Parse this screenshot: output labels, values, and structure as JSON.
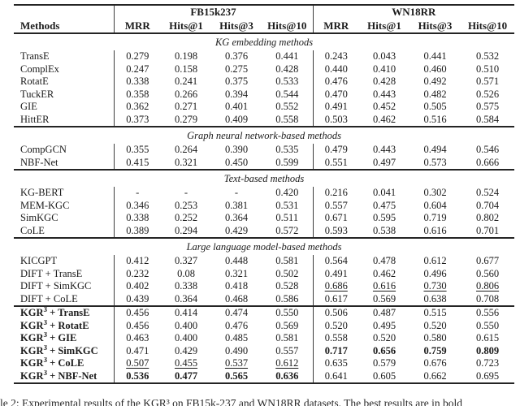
{
  "header": {
    "methods_label": "Methods",
    "groups": [
      {
        "label": "FB15k237",
        "cols": [
          "MRR",
          "Hits@1",
          "Hits@3",
          "Hits@10"
        ]
      },
      {
        "label": "WN18RR",
        "cols": [
          "MRR",
          "Hits@1",
          "Hits@3",
          "Hits@10"
        ]
      }
    ]
  },
  "sections": [
    {
      "title": "KG embedding methods",
      "rows": [
        {
          "method": "TransE",
          "values": [
            "0.279",
            "0.198",
            "0.376",
            "0.441",
            "0.243",
            "0.043",
            "0.441",
            "0.532"
          ]
        },
        {
          "method": "ComplEx",
          "values": [
            "0.247",
            "0.158",
            "0.275",
            "0.428",
            "0.440",
            "0.410",
            "0.460",
            "0.510"
          ]
        },
        {
          "method": "RotatE",
          "values": [
            "0.338",
            "0.241",
            "0.375",
            "0.533",
            "0.476",
            "0.428",
            "0.492",
            "0.571"
          ]
        },
        {
          "method": "TuckER",
          "values": [
            "0.358",
            "0.266",
            "0.394",
            "0.544",
            "0.470",
            "0.443",
            "0.482",
            "0.526"
          ]
        },
        {
          "method": "GIE",
          "values": [
            "0.362",
            "0.271",
            "0.401",
            "0.552",
            "0.491",
            "0.452",
            "0.505",
            "0.575"
          ]
        },
        {
          "method": "HittER",
          "values": [
            "0.373",
            "0.279",
            "0.409",
            "0.558",
            "0.503",
            "0.462",
            "0.516",
            "0.584"
          ]
        }
      ]
    },
    {
      "title": "Graph neural network-based methods",
      "rows": [
        {
          "method": "CompGCN",
          "values": [
            "0.355",
            "0.264",
            "0.390",
            "0.535",
            "0.479",
            "0.443",
            "0.494",
            "0.546"
          ]
        },
        {
          "method": "NBF-Net",
          "values": [
            "0.415",
            "0.321",
            "0.450",
            "0.599",
            "0.551",
            "0.497",
            "0.573",
            "0.666"
          ]
        }
      ]
    },
    {
      "title": "Text-based methods",
      "rows": [
        {
          "method": "KG-BERT",
          "values": [
            "-",
            "-",
            "-",
            "0.420",
            "0.216",
            "0.041",
            "0.302",
            "0.524"
          ]
        },
        {
          "method": "MEM-KGC",
          "values": [
            "0.346",
            "0.253",
            "0.381",
            "0.531",
            "0.557",
            "0.475",
            "0.604",
            "0.704"
          ]
        },
        {
          "method": "SimKGC",
          "values": [
            "0.338",
            "0.252",
            "0.364",
            "0.511",
            "0.671",
            "0.595",
            "0.719",
            "0.802"
          ]
        },
        {
          "method": "CoLE",
          "values": [
            "0.389",
            "0.294",
            "0.429",
            "0.572",
            "0.593",
            "0.538",
            "0.616",
            "0.701"
          ]
        }
      ]
    },
    {
      "title": "Large language model-based methods",
      "rows": [
        {
          "method": "KICGPT",
          "values": [
            "0.412",
            "0.327",
            "0.448",
            "0.581",
            "0.564",
            "0.478",
            "0.612",
            "0.677"
          ]
        },
        {
          "method": "DIFT + TransE",
          "values": [
            "0.232",
            "0.08",
            "0.321",
            "0.502",
            "0.491",
            "0.462",
            "0.496",
            "0.560"
          ]
        },
        {
          "method": "DIFT + SimKGC",
          "values": [
            "0.402",
            "0.338",
            "0.418",
            "0.528",
            {
              "v": "0.686",
              "u": true
            },
            {
              "v": "0.616",
              "u": true
            },
            {
              "v": "0.730",
              "u": true
            },
            {
              "v": "0.806",
              "u": true
            }
          ]
        },
        {
          "method": "DIFT + CoLE",
          "values": [
            "0.439",
            "0.364",
            "0.468",
            "0.586",
            "0.617",
            "0.569",
            "0.638",
            "0.708"
          ]
        }
      ]
    },
    {
      "title": null,
      "rows": [
        {
          "method": "KGR³ + TransE",
          "method_bold": true,
          "values": [
            "0.456",
            "0.414",
            "0.474",
            "0.550",
            "0.506",
            "0.487",
            "0.515",
            "0.556"
          ]
        },
        {
          "method": "KGR³ + RotatE",
          "method_bold": true,
          "values": [
            "0.456",
            "0.400",
            "0.476",
            "0.569",
            "0.520",
            "0.495",
            "0.520",
            "0.550"
          ]
        },
        {
          "method": "KGR³ + GIE",
          "method_bold": true,
          "values": [
            "0.463",
            "0.400",
            "0.485",
            "0.581",
            "0.558",
            "0.520",
            "0.580",
            "0.615"
          ]
        },
        {
          "method": "KGR³ + SimKGC",
          "method_bold": true,
          "values": [
            "0.471",
            "0.429",
            "0.490",
            "0.557",
            {
              "v": "0.717",
              "b": true
            },
            {
              "v": "0.656",
              "b": true
            },
            {
              "v": "0.759",
              "b": true
            },
            {
              "v": "0.809",
              "b": true
            }
          ]
        },
        {
          "method": "KGR³ + CoLE",
          "method_bold": true,
          "values": [
            {
              "v": "0.507",
              "u": true
            },
            {
              "v": "0.455",
              "u": true
            },
            {
              "v": "0.537",
              "u": true
            },
            {
              "v": "0.612",
              "u": true
            },
            "0.635",
            "0.579",
            "0.676",
            "0.723"
          ]
        },
        {
          "method": "KGR³ + NBF-Net",
          "method_bold": true,
          "values": [
            {
              "v": "0.536",
              "b": true
            },
            {
              "v": "0.477",
              "b": true
            },
            {
              "v": "0.565",
              "b": true
            },
            {
              "v": "0.636",
              "b": true
            },
            "0.641",
            "0.605",
            "0.662",
            "0.695"
          ]
        }
      ]
    }
  ],
  "caption": {
    "text": "le 2: Experimental results of the KGR³ on FB15k-237 and WN18RR datasets. The best results are in bold"
  }
}
